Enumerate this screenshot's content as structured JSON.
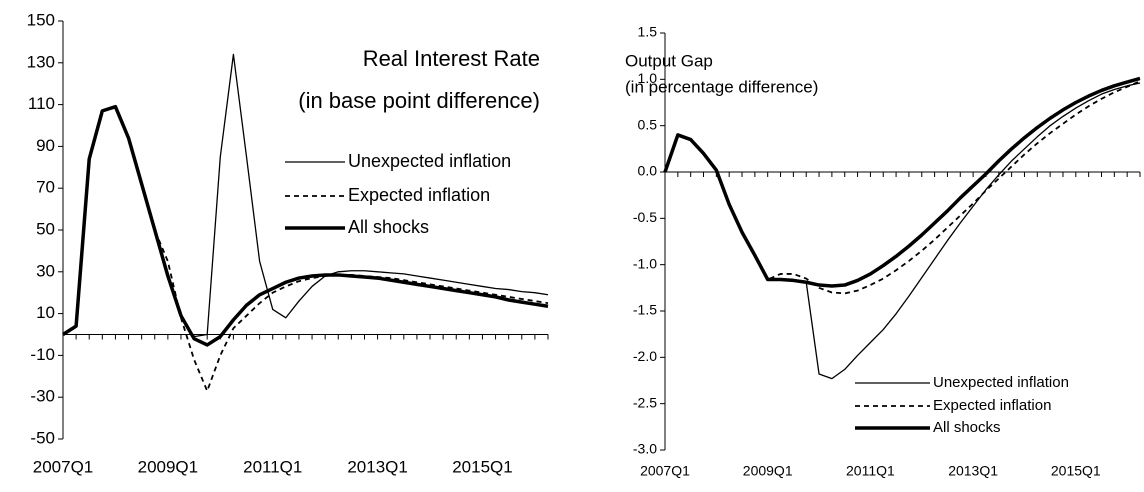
{
  "chart_data": [
    {
      "type": "line",
      "title": "Real Interest Rate",
      "subtitle": "(in base point difference)",
      "categories": [
        "2007Q1",
        null,
        null,
        null,
        null,
        null,
        null,
        null,
        "2009Q1",
        null,
        null,
        null,
        null,
        null,
        null,
        null,
        "2011Q1",
        null,
        null,
        null,
        null,
        null,
        null,
        null,
        "2013Q1",
        null,
        null,
        null,
        null,
        null,
        null,
        null,
        "2015Q1",
        null,
        null,
        null,
        null,
        null
      ],
      "ylim": [
        -50,
        150
      ],
      "yticks": [
        -50,
        -30,
        -10,
        10,
        30,
        50,
        70,
        90,
        110,
        130,
        150
      ],
      "series": [
        {
          "name": "Unexpected inflation",
          "color": "#000000",
          "values": [
            0,
            4,
            84,
            107,
            109,
            94,
            72,
            50,
            28,
            9,
            -1,
            0,
            85,
            134,
            85,
            35,
            12,
            8,
            16,
            23,
            28,
            30,
            30.5,
            30.5,
            30,
            29.5,
            29,
            28,
            27,
            26,
            25,
            24,
            23,
            22,
            21.5,
            20.5,
            20,
            19
          ]
        },
        {
          "name": "Expected inflation",
          "color": "#000000",
          "values": [
            0,
            4,
            84,
            107,
            109,
            94,
            72,
            50,
            35,
            8,
            -12,
            -27,
            -10,
            3,
            9,
            15,
            20,
            23,
            25.5,
            27,
            28,
            28.5,
            28.5,
            28,
            27.5,
            27,
            26,
            25,
            24,
            23,
            22,
            21,
            20,
            19,
            18,
            17,
            16,
            15
          ]
        },
        {
          "name": "All shocks",
          "color": "#000000",
          "values": [
            0,
            4,
            84,
            107,
            109,
            94,
            72,
            50,
            28,
            9,
            -2,
            -5,
            -1,
            7,
            14,
            19,
            22,
            25,
            27,
            28,
            28.5,
            28.5,
            28,
            27.5,
            27,
            26,
            25,
            24,
            23,
            22,
            21,
            20,
            19,
            18,
            16.5,
            15.5,
            14.5,
            13.5
          ]
        }
      ]
    },
    {
      "type": "line",
      "title": "Output Gap",
      "subtitle": "(in percentage difference)",
      "categories": [
        "2007Q1",
        null,
        null,
        null,
        null,
        null,
        null,
        null,
        "2009Q1",
        null,
        null,
        null,
        null,
        null,
        null,
        null,
        "2011Q1",
        null,
        null,
        null,
        null,
        null,
        null,
        null,
        "2013Q1",
        null,
        null,
        null,
        null,
        null,
        null,
        null,
        "2015Q1",
        null,
        null,
        null,
        null,
        null
      ],
      "ylim": [
        -3,
        1.5
      ],
      "yticks": [
        {
          "value": -3,
          "label": "-3.0"
        },
        -2.5,
        {
          "value": -2,
          "label": "-2.0"
        },
        -1.5,
        {
          "value": -1,
          "label": "-1.0"
        },
        -0.5,
        {
          "value": 0,
          "label": "0.0"
        },
        0.5,
        {
          "value": 1,
          "label": "1.0"
        },
        1.5
      ],
      "series": [
        {
          "name": "Unexpected inflation",
          "color": "#000000",
          "values": [
            0,
            0.4,
            0.35,
            0.2,
            0.02,
            -0.35,
            -0.65,
            -0.9,
            -1.16,
            -1.16,
            -1.17,
            -1.19,
            -2.18,
            -2.23,
            -2.13,
            -1.98,
            -1.84,
            -1.7,
            -1.53,
            -1.34,
            -1.14,
            -0.94,
            -0.74,
            -0.55,
            -0.37,
            -0.19,
            -0.03,
            0.12,
            0.25,
            0.38,
            0.5,
            0.6,
            0.69,
            0.77,
            0.84,
            0.89,
            0.93,
            0.96
          ]
        },
        {
          "name": "Expected inflation",
          "color": "#000000",
          "values": [
            0,
            0.4,
            0.35,
            0.2,
            0.02,
            -0.35,
            -0.65,
            -0.9,
            -1.16,
            -1.1,
            -1.1,
            -1.15,
            -1.25,
            -1.3,
            -1.31,
            -1.28,
            -1.22,
            -1.15,
            -1.06,
            -0.96,
            -0.85,
            -0.73,
            -0.6,
            -0.47,
            -0.34,
            -0.2,
            -0.07,
            0.06,
            0.19,
            0.31,
            0.42,
            0.52,
            0.62,
            0.71,
            0.79,
            0.86,
            0.92,
            0.98
          ]
        },
        {
          "name": "All shocks",
          "color": "#000000",
          "values": [
            0,
            0.4,
            0.35,
            0.2,
            0.02,
            -0.35,
            -0.65,
            -0.9,
            -1.16,
            -1.16,
            -1.17,
            -1.19,
            -1.22,
            -1.23,
            -1.22,
            -1.17,
            -1.1,
            -1.01,
            -0.91,
            -0.8,
            -0.68,
            -0.55,
            -0.42,
            -0.28,
            -0.15,
            -0.02,
            0.12,
            0.25,
            0.37,
            0.48,
            0.58,
            0.67,
            0.75,
            0.82,
            0.88,
            0.93,
            0.97,
            1.01
          ]
        }
      ]
    }
  ]
}
